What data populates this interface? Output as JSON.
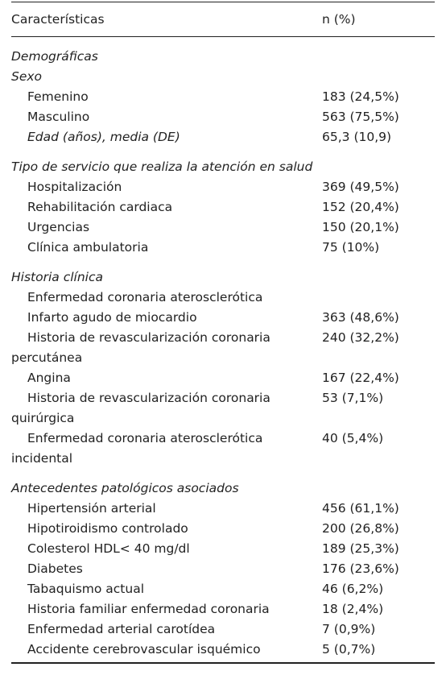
{
  "table": {
    "header": [
      "Características",
      "n (%)"
    ],
    "rows": [
      {
        "cells": [
          "Demográficas"
        ],
        "italic": true,
        "indent": false
      },
      {
        "cells": [
          "Sexo"
        ],
        "italic": true,
        "indent": false
      },
      {
        "cells": [
          "Femenino",
          "183 (24,5%)"
        ],
        "italic": false,
        "indent": true
      },
      {
        "cells": [
          "Masculino",
          "563 (75,5%)"
        ],
        "italic": false,
        "indent": true
      },
      {
        "cells": [
          "Edad (años), media (DE)",
          "65,3 (10,9)"
        ],
        "italic": true,
        "indent": true
      },
      {
        "cells": [
          "Tipo de servicio que realiza la atención en salud"
        ],
        "italic": true,
        "indent": false
      },
      {
        "cells": [
          "Hospitalización",
          "369 (49,5%)"
        ],
        "italic": false,
        "indent": true
      },
      {
        "cells": [
          "Rehabilitación cardiaca",
          "152 (20,4%)"
        ],
        "italic": false,
        "indent": true
      },
      {
        "cells": [
          "Urgencias",
          "150 (20,1%)"
        ],
        "italic": false,
        "indent": true
      },
      {
        "cells": [
          "Clínica ambulatoria",
          "75 (10%)"
        ],
        "italic": false,
        "indent": true
      },
      {
        "cells": [
          "Historia clínica"
        ],
        "italic": true,
        "indent": false
      },
      {
        "cells": [
          "Enfermedad coronaria aterosclerótica"
        ],
        "italic": false,
        "indent": true
      },
      {
        "cells": [
          "Infarto agudo de miocardio",
          "363 (48,6%)"
        ],
        "italic": false,
        "indent": true
      },
      {
        "cells": [
          "Historia de revascularización coronaria percutánea",
          "240 (32,2%)"
        ],
        "italic": false,
        "indent": true
      },
      {
        "cells": [
          "Angina",
          "167 (22,4%)"
        ],
        "italic": false,
        "indent": true
      },
      {
        "cells": [
          "Historia de revascularización coronaria quirúrgica",
          "53 (7,1%)"
        ],
        "italic": false,
        "indent": true
      },
      {
        "cells": [
          "Enfermedad coronaria aterosclerótica incidental",
          "40 (5,4%)"
        ],
        "italic": false,
        "indent": true
      },
      {
        "cells": [
          "Antecedentes patológicos asociados"
        ],
        "italic": true,
        "indent": false
      },
      {
        "cells": [
          "Hipertensión arterial",
          "456 (61,1%)"
        ],
        "italic": false,
        "indent": true
      },
      {
        "cells": [
          "Hipotiroidismo controlado",
          "200 (26,8%)"
        ],
        "italic": false,
        "indent": true
      },
      {
        "cells": [
          "Colesterol HDL< 40 mg/dl",
          "189 (25,3%)"
        ],
        "italic": false,
        "indent": true
      },
      {
        "cells": [
          "Diabetes",
          "176 (23,6%)"
        ],
        "italic": false,
        "indent": true
      },
      {
        "cells": [
          "Tabaquismo actual",
          "46 (6,2%)"
        ],
        "italic": false,
        "indent": true
      },
      {
        "cells": [
          "Historia familiar enfermedad coronaria",
          "18 (2,4%)"
        ],
        "italic": false,
        "indent": true
      },
      {
        "cells": [
          "Enfermedad arterial carotídea",
          "7 (0,9%)"
        ],
        "italic": false,
        "indent": true
      },
      {
        "cells": [
          "Accidente cerebrovascular isquémico",
          "5 (0,7%)"
        ],
        "italic": false,
        "indent": true
      }
    ]
  }
}
